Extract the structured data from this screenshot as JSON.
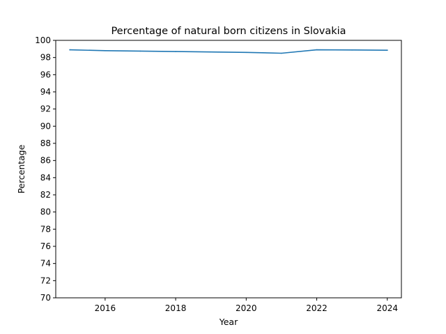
{
  "chart_data": {
    "type": "line",
    "title": "Percentage of natural born citizens in Slovakia",
    "xlabel": "Year",
    "ylabel": "Percentage",
    "xlim": [
      2014.6,
      2024.4
    ],
    "ylim": [
      70,
      100
    ],
    "xticks": [
      2016,
      2018,
      2020,
      2022,
      2024
    ],
    "yticks": [
      70,
      72,
      74,
      76,
      78,
      80,
      82,
      84,
      86,
      88,
      90,
      92,
      94,
      96,
      98,
      100
    ],
    "grid": false,
    "series": [
      {
        "color": "#1f77b4",
        "x": [
          2015,
          2016,
          2017,
          2018,
          2019,
          2020,
          2021,
          2022,
          2023,
          2024
        ],
        "values": [
          98.9,
          98.8,
          98.75,
          98.7,
          98.65,
          98.6,
          98.5,
          98.9,
          98.88,
          98.85
        ]
      }
    ]
  }
}
